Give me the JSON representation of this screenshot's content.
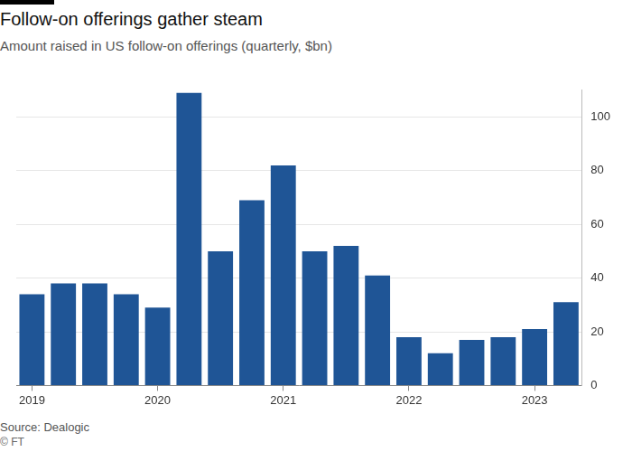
{
  "chart_data": {
    "type": "bar",
    "title": "Follow-on offerings gather steam",
    "subtitle": "Amount raised in US follow-on offerings (quarterly, $bn)",
    "source": "Source: Dealogic",
    "credit": "© FT",
    "categories": [
      "2019",
      null,
      null,
      null,
      "2020",
      null,
      null,
      null,
      "2021",
      null,
      null,
      null,
      "2022",
      null,
      null,
      null,
      "2023",
      null
    ],
    "values": [
      34,
      38,
      38,
      34,
      29,
      109,
      50,
      69,
      82,
      50,
      52,
      41,
      18,
      12,
      17,
      18,
      21,
      31
    ],
    "color": "#1f5596",
    "ylim": [
      0,
      110
    ],
    "yticks": [
      0,
      20,
      40,
      60,
      80,
      100
    ],
    "grid": true
  }
}
